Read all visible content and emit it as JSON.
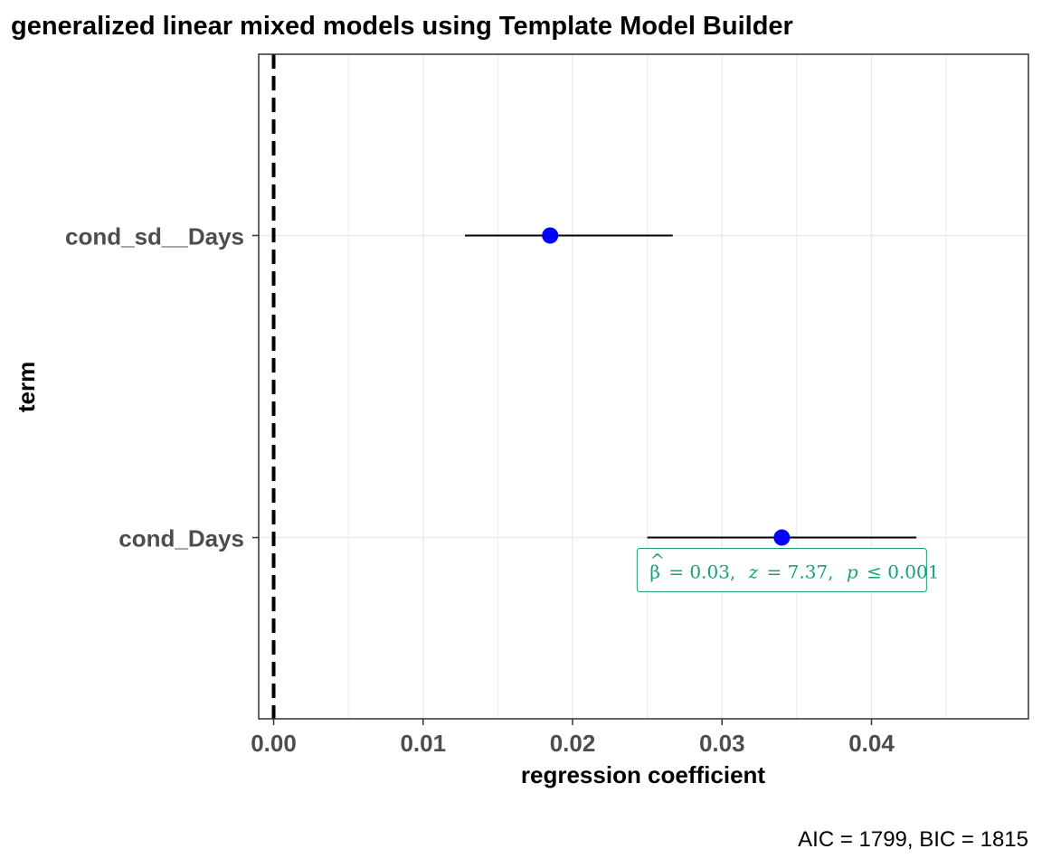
{
  "chart_data": {
    "type": "scatter",
    "title": "generalized linear mixed models using Template Model Builder",
    "xlabel": "regression coefficient",
    "ylabel": "term",
    "xlim": [
      -0.001,
      0.0505
    ],
    "x_ticks": [
      "0.00",
      "0.01",
      "0.02",
      "0.03",
      "0.04"
    ],
    "x_tick_values": [
      0.0,
      0.01,
      0.02,
      0.03,
      0.04
    ],
    "categories": [
      "cond_sd__Days",
      "cond_Days"
    ],
    "grid": true,
    "reference_line": {
      "x": 0,
      "style": "dashed"
    },
    "series": [
      {
        "estimates": [
          0.0185,
          0.034
        ],
        "conf_low": [
          0.0128,
          0.025
        ],
        "conf_high": [
          0.0267,
          0.043
        ]
      }
    ],
    "annotation": {
      "term": "cond_Days",
      "beta_symbol": "β",
      "beta_value": "= 0.03,",
      "z_symbol": "z",
      "z_value": "= 7.37,",
      "p_symbol": "p",
      "p_value": "≤ 0.001",
      "color": "#1b9e77"
    },
    "caption": "AIC = 1799, BIC = 1815",
    "colors": {
      "point": "#0000ff",
      "errorbar": "#000000",
      "panel_border": "#333333",
      "grid": "#ebebeb"
    }
  }
}
